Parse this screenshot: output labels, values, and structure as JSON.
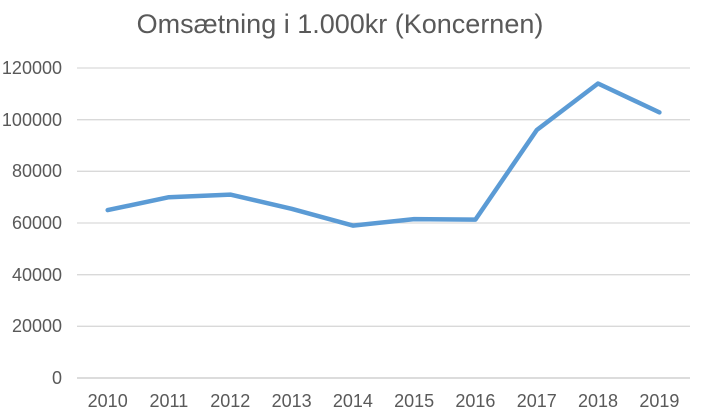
{
  "chart_data": {
    "type": "line",
    "title": "Omsætning i 1.000kr (Koncernen)",
    "categories": [
      "2010",
      "2011",
      "2012",
      "2013",
      "2014",
      "2015",
      "2016",
      "2017",
      "2018",
      "2019"
    ],
    "values": [
      65000,
      70000,
      71000,
      65500,
      59000,
      61500,
      61300,
      96000,
      114000,
      102800
    ],
    "xlabel": "",
    "ylabel": "",
    "ylim": [
      0,
      120000
    ],
    "yticks": [
      0,
      20000,
      40000,
      60000,
      80000,
      100000,
      120000
    ],
    "grid": true,
    "legend_position": "none",
    "colors": {
      "line": "#5B9BD5",
      "gridline": "#D9D9D9",
      "axis_line": "#C6C6C6",
      "text": "#595959",
      "background": "#FFFFFF"
    }
  }
}
